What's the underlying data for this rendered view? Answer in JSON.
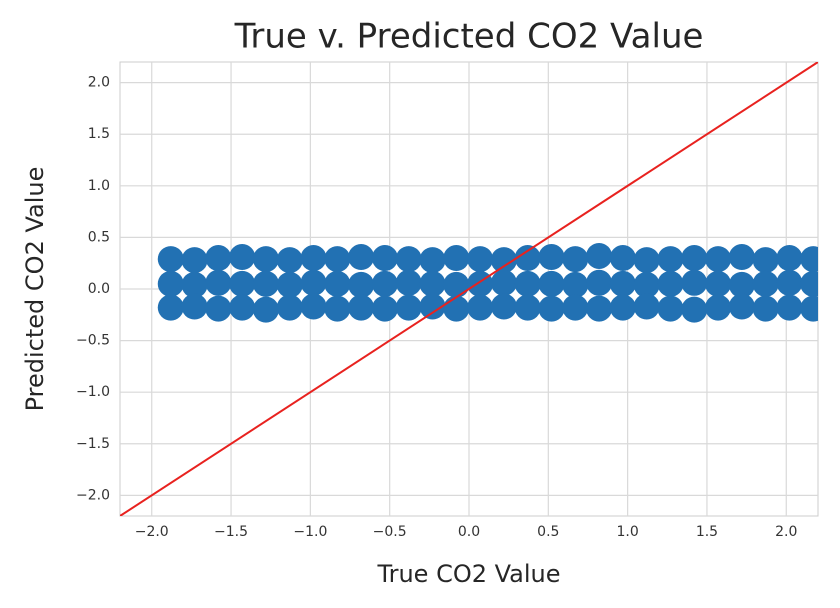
{
  "chart_data": {
    "type": "scatter",
    "title": "True v. Predicted CO2 Value",
    "x_label": "True CO2 Value",
    "y_label": "Predicted CO2 Value",
    "color": "#2271b3",
    "identity_line_color": "#e8221f",
    "grid": true,
    "xlim": [
      -2.2,
      2.2
    ],
    "ylim": [
      -2.2,
      2.2
    ],
    "xticks": [
      {
        "value": -2,
        "label": "−2.0"
      },
      {
        "value": -1.5,
        "label": "−1.5"
      },
      {
        "value": -1,
        "label": "−1.0"
      },
      {
        "value": -0.5,
        "label": "−0.5"
      },
      {
        "value": 0,
        "label": "0.0"
      },
      0.5,
      {
        "value": 1,
        "label": "1.0"
      },
      1.5,
      {
        "value": 2,
        "label": "2.0"
      }
    ],
    "yticks": [
      {
        "value": -2,
        "label": "−2.0"
      },
      {
        "value": -1.5,
        "label": "−1.5"
      },
      {
        "value": -1,
        "label": "−1.0"
      },
      {
        "value": -0.5,
        "label": "−0.5"
      },
      {
        "value": 0,
        "label": "0.0"
      },
      0.5,
      {
        "value": 1,
        "label": "1.0"
      },
      1.5,
      {
        "value": 2,
        "label": "2.0"
      }
    ],
    "x": [
      -1.88,
      -1.73,
      -1.58,
      -1.43,
      -1.28,
      -1.13,
      -0.98,
      -0.83,
      -0.68,
      -0.53,
      -0.38,
      -0.23,
      -0.08,
      0.07,
      0.22,
      0.37,
      0.52,
      0.67,
      0.82,
      0.97,
      1.12,
      1.27,
      1.42,
      1.57,
      1.72,
      1.87,
      2.02,
      2.17,
      -1.88,
      -1.73,
      -1.58,
      -1.43,
      -1.28,
      -1.13,
      -0.98,
      -0.83,
      -0.68,
      -0.53,
      -0.38,
      -0.23,
      -0.08,
      0.07,
      0.22,
      0.37,
      0.52,
      0.67,
      0.82,
      0.97,
      1.12,
      1.27,
      1.42,
      1.57,
      1.72,
      1.87,
      2.02,
      2.17,
      -1.88,
      -1.73,
      -1.58,
      -1.43,
      -1.28,
      -1.13,
      -0.98,
      -0.83,
      -0.68,
      -0.53,
      -0.38,
      -0.23,
      -0.08,
      0.07,
      0.22,
      0.37,
      0.52,
      0.67,
      0.82,
      0.97,
      1.12,
      1.27,
      1.42,
      1.57,
      1.72,
      1.87,
      2.02,
      2.17
    ],
    "y": [
      0.29,
      0.28,
      0.3,
      0.31,
      0.29,
      0.28,
      0.3,
      0.29,
      0.31,
      0.3,
      0.29,
      0.28,
      0.3,
      0.29,
      0.28,
      0.3,
      0.31,
      0.29,
      0.32,
      0.3,
      0.28,
      0.29,
      0.3,
      0.29,
      0.31,
      0.28,
      0.3,
      0.29,
      0.05,
      0.04,
      0.06,
      0.05,
      0.05,
      0.04,
      0.06,
      0.05,
      0.04,
      0.05,
      0.06,
      0.05,
      0.04,
      0.05,
      0.06,
      0.05,
      0.05,
      0.04,
      0.06,
      0.05,
      0.04,
      0.05,
      0.06,
      0.05,
      0.04,
      0.05,
      0.06,
      0.05,
      -0.18,
      -0.17,
      -0.19,
      -0.18,
      -0.2,
      -0.18,
      -0.17,
      -0.19,
      -0.18,
      -0.19,
      -0.18,
      -0.17,
      -0.19,
      -0.18,
      -0.17,
      -0.18,
      -0.19,
      -0.18,
      -0.19,
      -0.18,
      -0.17,
      -0.19,
      -0.2,
      -0.18,
      -0.17,
      -0.19,
      -0.18,
      -0.19
    ]
  }
}
